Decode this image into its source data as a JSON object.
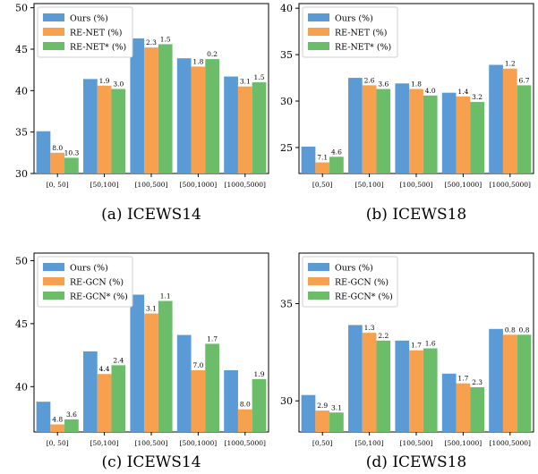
{
  "colors": {
    "ours": "#5b9bd5",
    "base": "#f7a04e",
    "star": "#6cbd6a"
  },
  "chart_data": [
    {
      "type": "bar",
      "caption": "(a) ICEWS14",
      "categories": [
        "[0, 50]",
        "[50,100]",
        "[100,500]",
        "[500,1000]",
        "[1000,5000]"
      ],
      "ylim": [
        30,
        50.5
      ],
      "yticks": [
        30,
        35,
        40,
        45,
        50
      ],
      "series": [
        {
          "name": "Ours (%)",
          "values": [
            35.1,
            41.4,
            46.3,
            43.9,
            41.7
          ]
        },
        {
          "name": "RE-NET (%)",
          "values": [
            32.5,
            40.6,
            45.2,
            42.9,
            40.5
          ],
          "labels": [
            "8.0",
            "1.9",
            "2.3",
            "1.8",
            "3.1"
          ]
        },
        {
          "name": "RE-NET* (%)",
          "values": [
            31.9,
            40.2,
            45.6,
            43.8,
            41.0
          ],
          "labels": [
            "10.3",
            "3.0",
            "1.5",
            "0.2",
            "1.5"
          ]
        }
      ]
    },
    {
      "type": "bar",
      "caption": "(b) ICEWS18",
      "categories": [
        "[0,50]",
        "[50,100]",
        "[100,500]",
        "[500,1000]",
        "[1000,5000]"
      ],
      "ylim": [
        22.2,
        40.5
      ],
      "yticks": [
        25,
        30,
        35,
        40
      ],
      "series": [
        {
          "name": "Ours (%)",
          "values": [
            25.1,
            32.5,
            31.9,
            30.9,
            33.9
          ]
        },
        {
          "name": "RE-NET (%)",
          "values": [
            23.4,
            31.7,
            31.3,
            30.5,
            33.5
          ],
          "labels": [
            "7.1",
            "2.6",
            "1.8",
            "1.4",
            "1.2"
          ]
        },
        {
          "name": "RE-NET* (%)",
          "values": [
            24.0,
            31.3,
            30.6,
            29.9,
            31.7
          ],
          "labels": [
            "4.6",
            "3.6",
            "4.0",
            "3.2",
            "6.7"
          ]
        }
      ]
    },
    {
      "type": "bar",
      "caption": "(c) ICEWS14",
      "categories": [
        "[0, 50]",
        "[50,100]",
        "[100,500]",
        "[500,1000]",
        "[1000,5000]"
      ],
      "ylim": [
        36.4,
        50.6
      ],
      "yticks": [
        40,
        45,
        50
      ],
      "series": [
        {
          "name": "Ours (%)",
          "values": [
            38.8,
            42.8,
            47.3,
            44.1,
            41.3
          ]
        },
        {
          "name": "RE-GCN (%)",
          "values": [
            37.0,
            41.0,
            45.8,
            41.3,
            38.2
          ],
          "labels": [
            "4.8",
            "4.4",
            "3.1",
            "7.0",
            "8.0"
          ]
        },
        {
          "name": "RE-GCN* (%)",
          "values": [
            37.4,
            41.7,
            46.8,
            43.4,
            40.6
          ],
          "labels": [
            "3.6",
            "2.4",
            "1.1",
            "1.7",
            "1.9"
          ]
        }
      ]
    },
    {
      "type": "bar",
      "caption": "(d) ICEWS18",
      "categories": [
        "[0,50]",
        "[50,100]",
        "[100,500]",
        "[500,1000]",
        "[1000,5000]"
      ],
      "ylim": [
        28.4,
        37.6
      ],
      "yticks": [
        30,
        35
      ],
      "series": [
        {
          "name": "Ours (%)",
          "values": [
            30.3,
            33.9,
            33.1,
            31.4,
            33.7
          ]
        },
        {
          "name": "RE-GCN (%)",
          "values": [
            29.5,
            33.5,
            32.6,
            30.9,
            33.4
          ],
          "labels": [
            "2.9",
            "1.3",
            "1.7",
            "1.7",
            "0.8"
          ]
        },
        {
          "name": "RE-GCN* (%)",
          "values": [
            29.4,
            33.1,
            32.7,
            30.7,
            33.4
          ],
          "labels": [
            "3.1",
            "2.2",
            "1.6",
            "2.3",
            "0.8"
          ]
        }
      ]
    }
  ]
}
